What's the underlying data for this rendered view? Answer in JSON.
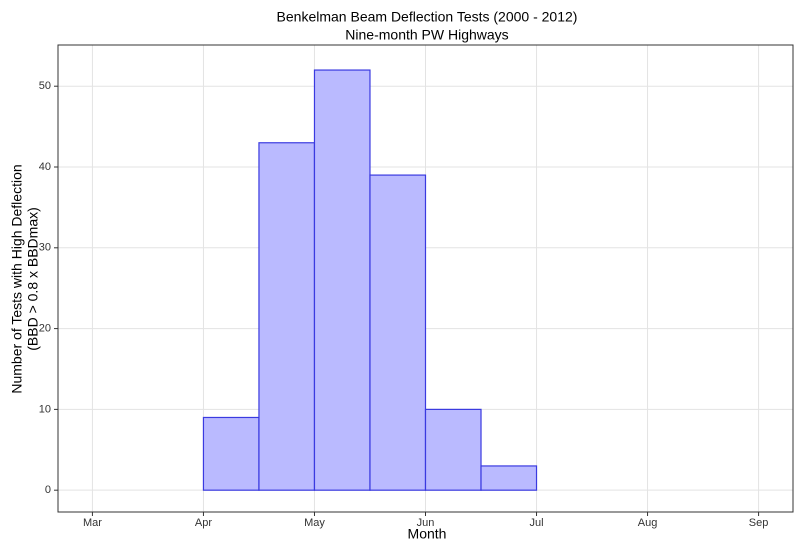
{
  "chart_data": {
    "type": "histogram",
    "title": "Benkelman Beam Deflection Tests (2000 - 2012)",
    "subtitle": "Nine-month PW Highways",
    "x_label": "Month",
    "y_label": [
      "Number of Tests with High Deflection",
      "(BBD > 0.8 x BBDmax)"
    ],
    "bins": [
      3,
      3.5,
      4,
      4.5,
      5,
      5.5,
      6,
      6.5,
      7,
      7.5,
      8,
      8.5,
      9
    ],
    "values": [
      0,
      0,
      9,
      43,
      52,
      39,
      10,
      3,
      0,
      0,
      0,
      0
    ],
    "color": "#babaff",
    "edge_color": "#3a3ae0",
    "xlim": [
      2.69,
      9.31
    ],
    "xticks": [
      {
        "value": 3,
        "label": "Mar"
      },
      {
        "value": 4,
        "label": "Apr"
      },
      {
        "value": 5,
        "label": "May"
      },
      {
        "value": 6,
        "label": "Jun"
      },
      {
        "value": 7,
        "label": "Jul"
      },
      {
        "value": 8,
        "label": "Aug"
      },
      {
        "value": 9,
        "label": "Sep"
      }
    ],
    "ylim": [
      -2.7,
      55.1
    ],
    "yticks": [
      0,
      10,
      20,
      30,
      40,
      50
    ],
    "grid": true
  }
}
